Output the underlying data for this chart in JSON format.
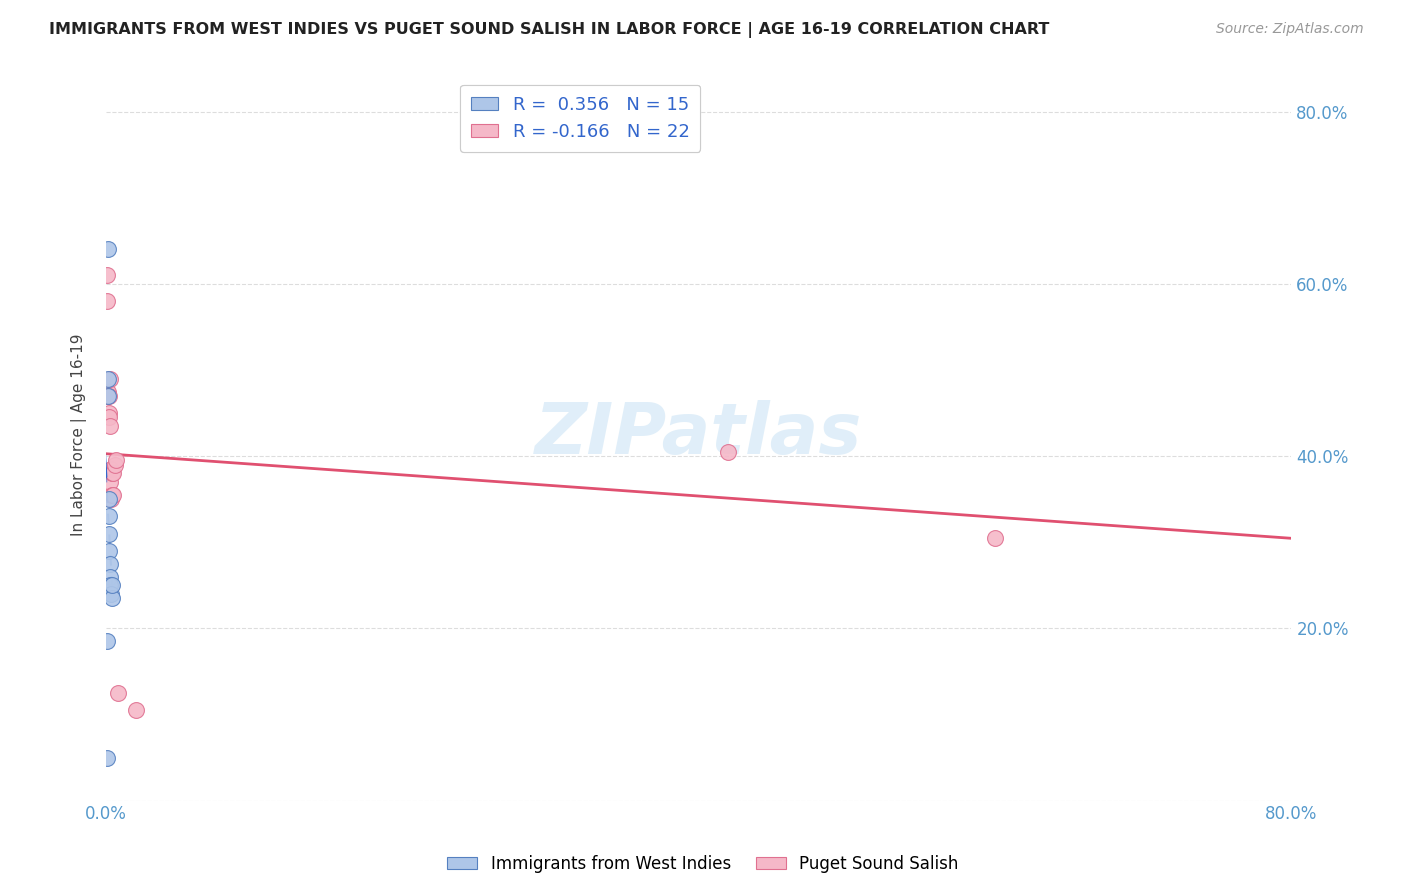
{
  "title": "IMMIGRANTS FROM WEST INDIES VS PUGET SOUND SALISH IN LABOR FORCE | AGE 16-19 CORRELATION CHART",
  "source": "Source: ZipAtlas.com",
  "ylabel": "In Labor Force | Age 16-19",
  "xlim": [
    0.0,
    0.8
  ],
  "ylim": [
    0.0,
    0.85
  ],
  "xticks": [
    0.0,
    0.1,
    0.2,
    0.3,
    0.4,
    0.5,
    0.6,
    0.7,
    0.8
  ],
  "xticklabels": [
    "0.0%",
    "",
    "",
    "",
    "",
    "",
    "",
    "",
    "80.0%"
  ],
  "yticks": [
    0.0,
    0.2,
    0.4,
    0.6,
    0.8
  ],
  "yticklabels": [
    "",
    "20.0%",
    "40.0%",
    "60.0%",
    "80.0%"
  ],
  "blue_R": 0.356,
  "blue_N": 15,
  "pink_R": -0.166,
  "pink_N": 22,
  "blue_color": "#aec6e8",
  "pink_color": "#f5b8c8",
  "blue_edge_color": "#5580c0",
  "pink_edge_color": "#e07090",
  "blue_line_color": "#3366cc",
  "pink_line_color": "#e05070",
  "watermark": "ZIPatlas",
  "blue_x": [
    0.0008,
    0.0012,
    0.0015,
    0.0015,
    0.0018,
    0.002,
    0.0022,
    0.0022,
    0.0025,
    0.0028,
    0.003,
    0.0032,
    0.0038,
    0.0042,
    0.0008
  ],
  "blue_y": [
    0.05,
    0.64,
    0.49,
    0.47,
    0.35,
    0.33,
    0.31,
    0.29,
    0.275,
    0.26,
    0.25,
    0.24,
    0.235,
    0.25,
    0.185
  ],
  "pink_x": [
    0.0005,
    0.0008,
    0.001,
    0.0015,
    0.0018,
    0.002,
    0.0022,
    0.0025,
    0.0028,
    0.003,
    0.0032,
    0.0035,
    0.0038,
    0.0042,
    0.0045,
    0.005,
    0.006,
    0.0065,
    0.008,
    0.02,
    0.42,
    0.6
  ],
  "pink_y": [
    0.61,
    0.58,
    0.47,
    0.475,
    0.47,
    0.45,
    0.445,
    0.49,
    0.435,
    0.37,
    0.35,
    0.385,
    0.38,
    0.355,
    0.38,
    0.355,
    0.39,
    0.395,
    0.125,
    0.105,
    0.405,
    0.305
  ],
  "legend_label_blue": "Immigrants from West Indies",
  "legend_label_pink": "Puget Sound Salish",
  "grid_color": "#dddddd",
  "tick_color": "#5599cc"
}
